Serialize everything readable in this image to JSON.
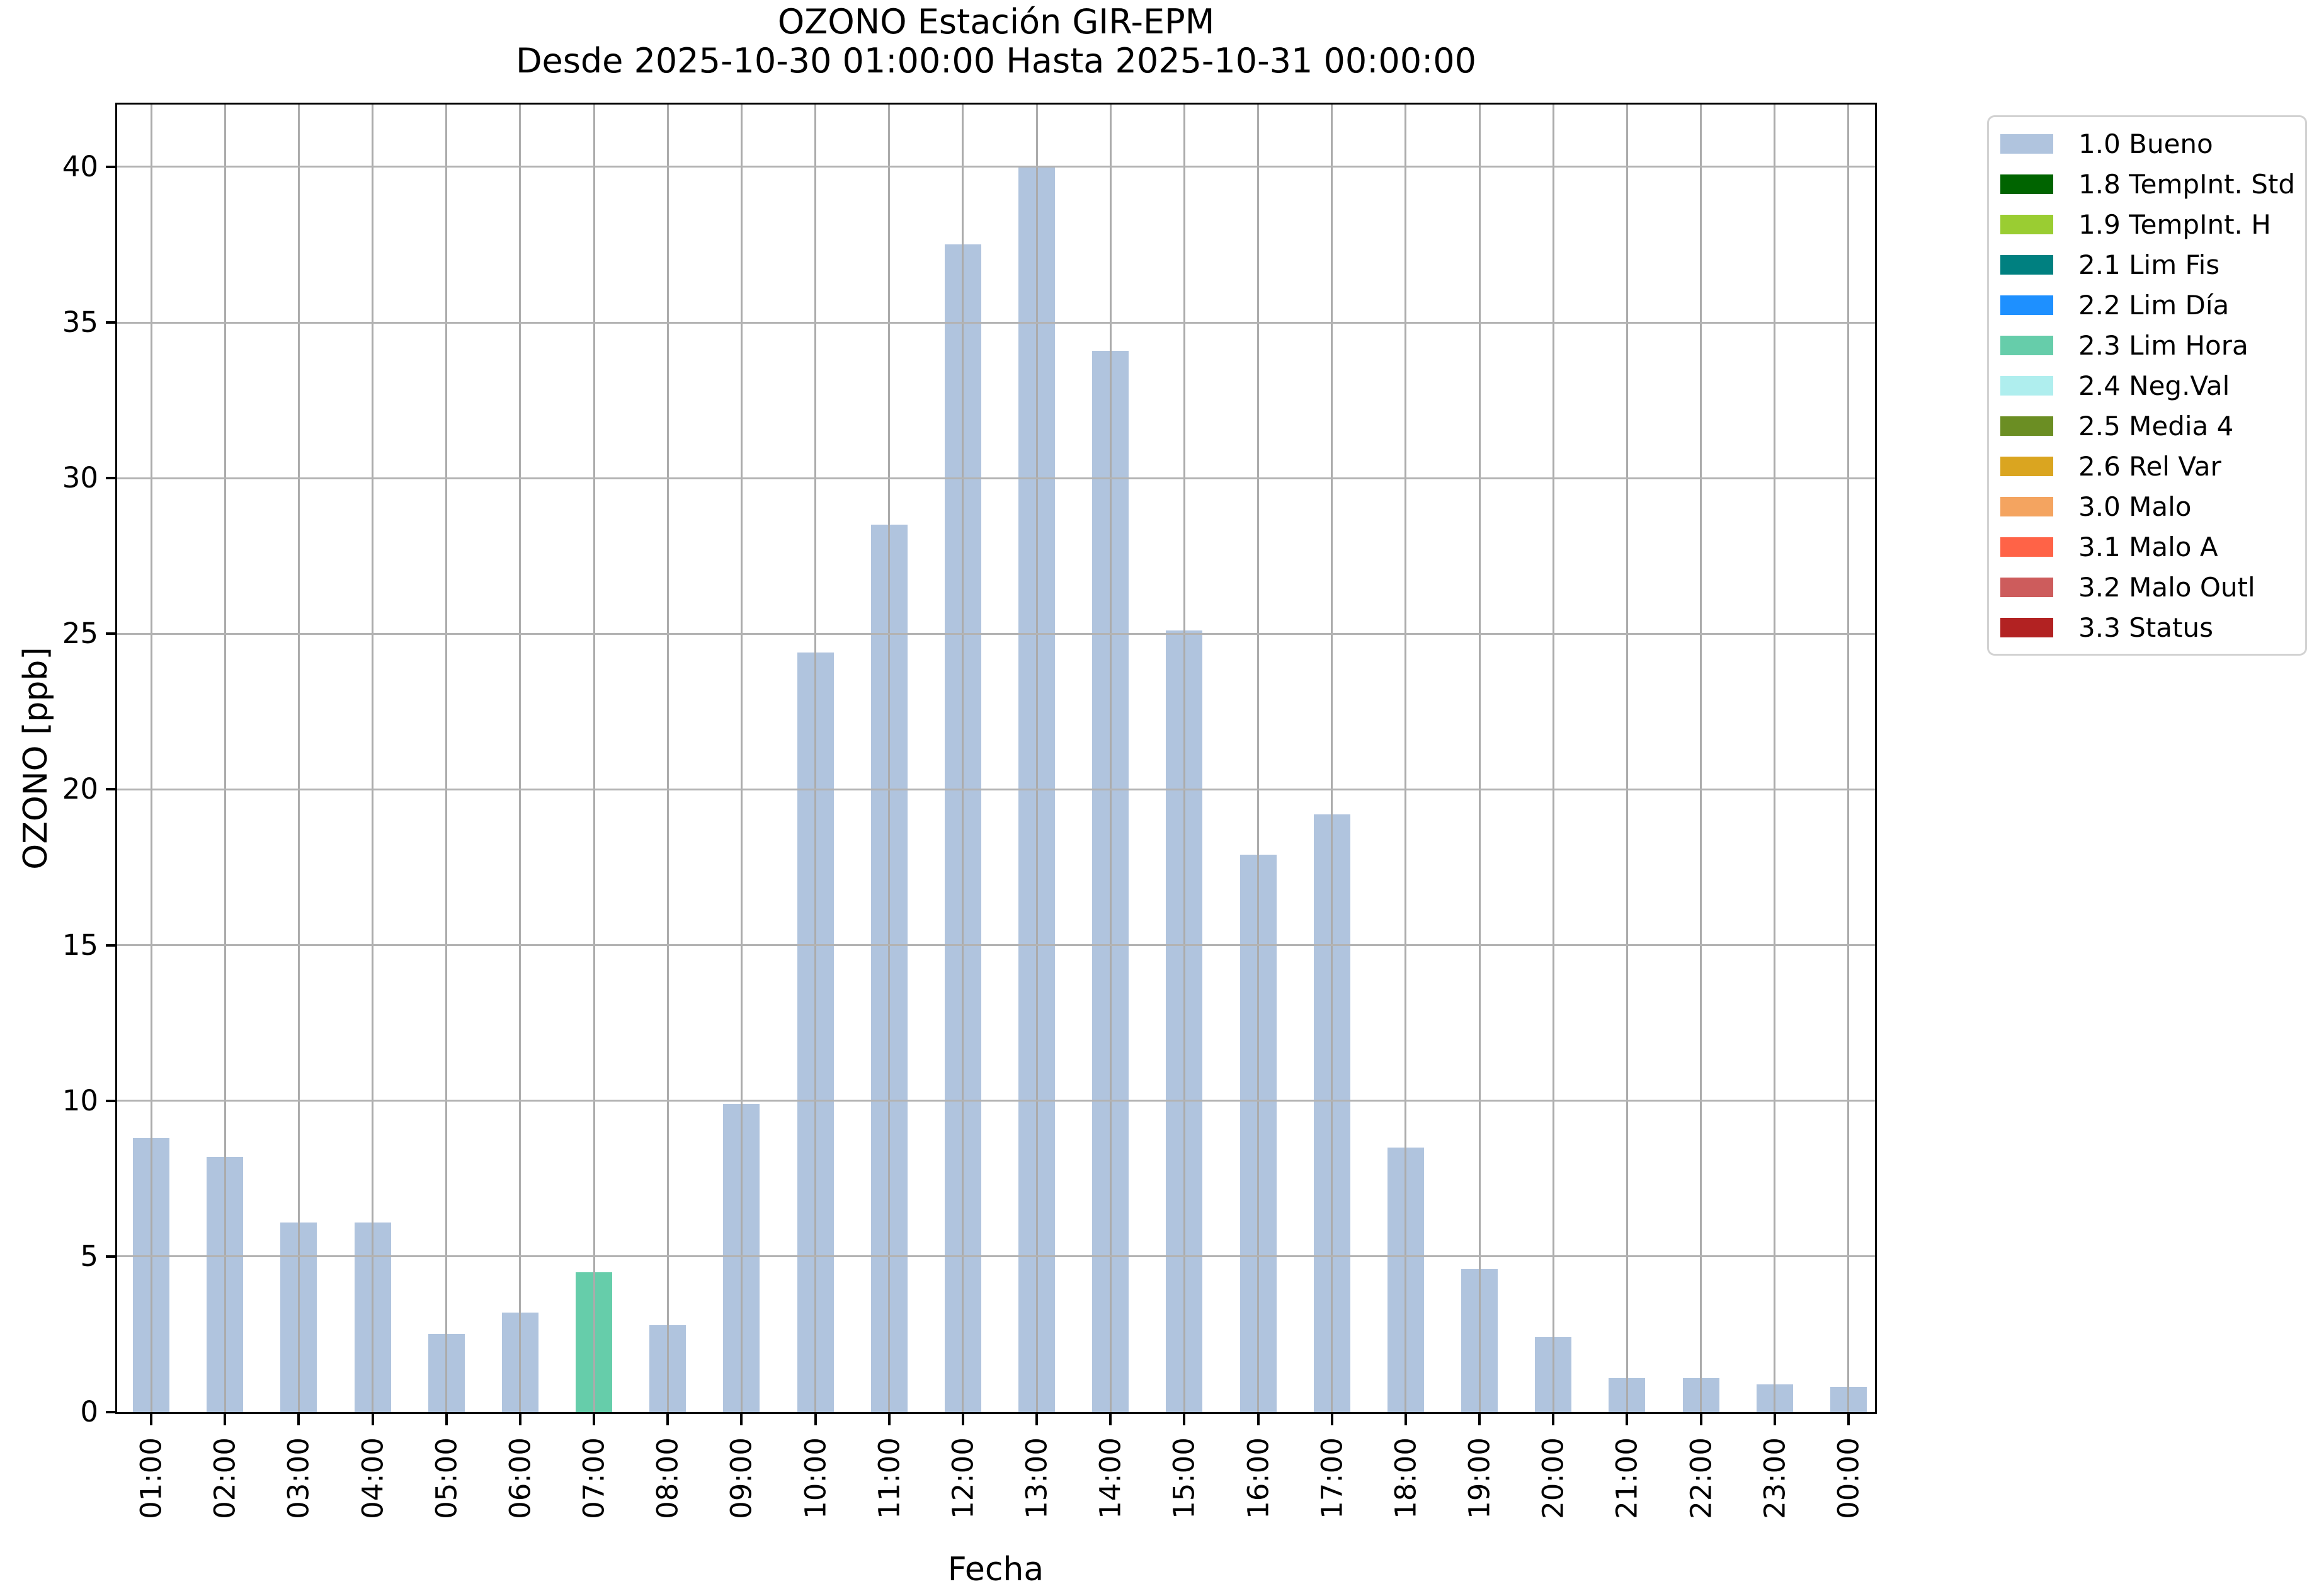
{
  "figure": {
    "title": "OZONO Estación GIR-EPM",
    "subtitle": "Desde 2025-10-30 01:00:00 Hasta 2025-10-31 00:00:00"
  },
  "chart_data": {
    "type": "bar",
    "title": "OZONO Estación GIR-EPM",
    "subtitle": "Desde 2025-10-30 01:00:00 Hasta 2025-10-31 00:00:00",
    "xlabel": "Fecha",
    "ylabel": "OZONO [ppb]",
    "categories": [
      "01:00",
      "02:00",
      "03:00",
      "04:00",
      "05:00",
      "06:00",
      "07:00",
      "08:00",
      "09:00",
      "10:00",
      "11:00",
      "12:00",
      "13:00",
      "14:00",
      "15:00",
      "16:00",
      "17:00",
      "18:00",
      "19:00",
      "20:00",
      "21:00",
      "22:00",
      "23:00",
      "00:00"
    ],
    "values": [
      8.8,
      8.2,
      6.1,
      6.1,
      2.5,
      3.2,
      4.5,
      2.8,
      9.9,
      24.4,
      28.5,
      37.5,
      40.0,
      34.1,
      25.1,
      17.9,
      19.2,
      8.5,
      4.6,
      2.4,
      1.1,
      1.1,
      0.9,
      0.8
    ],
    "bar_status": [
      "1.0 Bueno",
      "1.0 Bueno",
      "1.0 Bueno",
      "1.0 Bueno",
      "1.0 Bueno",
      "1.0 Bueno",
      "2.3 Lim Hora",
      "1.0 Bueno",
      "1.0 Bueno",
      "1.0 Bueno",
      "1.0 Bueno",
      "1.0 Bueno",
      "1.0 Bueno",
      "1.0 Bueno",
      "1.0 Bueno",
      "1.0 Bueno",
      "1.0 Bueno",
      "1.0 Bueno",
      "1.0 Bueno",
      "1.0 Bueno",
      "1.0 Bueno",
      "1.0 Bueno",
      "1.0 Bueno",
      "1.0 Bueno"
    ],
    "yticks": [
      0,
      5,
      10,
      15,
      20,
      25,
      30,
      35,
      40
    ],
    "ylim": [
      0,
      42
    ],
    "grid": true,
    "legend_position": "outside-upper-right",
    "legend": [
      {
        "label": "1.0 Bueno",
        "color": "#b0c4de"
      },
      {
        "label": "1.8 TempInt. Std",
        "color": "#006400"
      },
      {
        "label": "1.9 TempInt. H",
        "color": "#9acd32"
      },
      {
        "label": "2.1 Lim Fis",
        "color": "#008080"
      },
      {
        "label": "2.2 Lim Día",
        "color": "#1e90ff"
      },
      {
        "label": "2.3 Lim Hora",
        "color": "#66cdaa"
      },
      {
        "label": "2.4 Neg.Val",
        "color": "#afeeee"
      },
      {
        "label": "2.5 Media 4",
        "color": "#6b8e23"
      },
      {
        "label": "2.6 Rel Var",
        "color": "#daa520"
      },
      {
        "label": "3.0 Malo",
        "color": "#f4a460"
      },
      {
        "label": "3.1 Malo A",
        "color": "#ff6347"
      },
      {
        "label": "3.2 Malo Outl",
        "color": "#cd5c5c"
      },
      {
        "label": "3.3 Status",
        "color": "#b22222"
      }
    ]
  },
  "colors": {
    "bar_default": "#b0c4de",
    "bar_highlight": "#66cdaa",
    "grid_horizontal": "#b3b3b3",
    "grid_vertical": "#ababab",
    "axis": "#000000",
    "legend_border": "#d2d2d2",
    "background": "#ffffff"
  }
}
